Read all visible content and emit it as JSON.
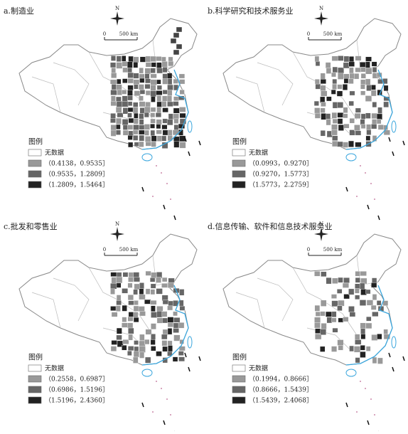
{
  "panels": [
    {
      "title": "a.制造业",
      "north": "N",
      "scale": [
        "0",
        "500 km"
      ],
      "legend_title": "图例",
      "legend": [
        "无数据",
        "（0.4138，0.9535］",
        "（0.9535，1.2809］",
        "（1.2809，1.5464］"
      ]
    },
    {
      "title": "b.科学研究和技术服务业",
      "north": "N",
      "scale": [
        "0",
        "500 km"
      ],
      "legend_title": "图例",
      "legend": [
        "无数据",
        "（0.0993，0.9270］",
        "（0.9270，1.5773］",
        "（1.5773，2.2759］"
      ]
    },
    {
      "title": "c.批发和零售业",
      "north": "N",
      "scale": [
        "0",
        "500 km"
      ],
      "legend_title": "图例",
      "legend": [
        "无数据",
        "（0.2558，0.6987］",
        "（0.6986，1.5196］",
        "（1.5196，2.4360］"
      ]
    },
    {
      "title": "d.信息传输、软件和信息技术服务业",
      "north": "N",
      "scale": [
        "0",
        "500 km"
      ],
      "legend_title": "图例",
      "legend": [
        "无数据",
        "（0.1994，0.8666］",
        "（0.8666，1.5439］",
        "（1.5439，2.4068］"
      ]
    }
  ]
}
